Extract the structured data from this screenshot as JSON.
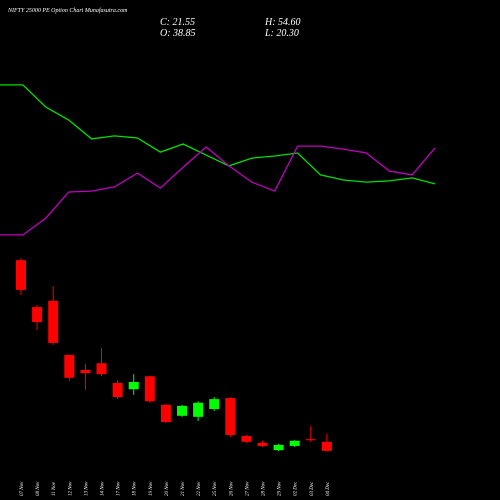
{
  "chart_data": {
    "type": "candlestick",
    "title": "NIFTY 25000 PE Option Chart Munafasutra.com",
    "ohlc_header": {
      "close": "C: 21.55",
      "high": "H: 54.60",
      "open": "O: 38.85",
      "low": "L: 20.30"
    },
    "categories": [
      "07 Nov",
      "08 Nov",
      "11 Nov",
      "12 Nov",
      "13 Nov",
      "14 Nov",
      "17 Nov",
      "18 Nov",
      "19 Nov",
      "20 Nov",
      "21 Nov",
      "22 Nov",
      "25 Nov",
      "26 Nov",
      "27 Nov",
      "28 Nov",
      "29 Nov",
      "02 Dec",
      "03 Dec",
      "04 Dec"
    ],
    "open": [
      388,
      298,
      310,
      206,
      177,
      190,
      152,
      140,
      165,
      110,
      89,
      87,
      102,
      123,
      50,
      37,
      23,
      31,
      44,
      38.85
    ],
    "high": [
      392,
      302,
      338,
      206,
      189,
      219,
      158,
      169,
      165,
      112,
      110,
      117,
      125,
      125,
      52,
      41,
      35,
      42,
      69,
      54.6
    ],
    "low": [
      321,
      254,
      225,
      156,
      139,
      165,
      121,
      129,
      114,
      75,
      87,
      79,
      98,
      48,
      37,
      29,
      21,
      29,
      39,
      20.3
    ],
    "close": [
      331,
      269,
      229,
      162,
      171,
      169,
      125,
      154,
      117,
      77,
      108,
      114,
      121,
      52,
      39,
      31,
      33,
      41,
      42,
      21.55
    ],
    "up_color": "#00ff00",
    "down_color": "#ff0000",
    "ylim": [
      4,
      398
    ],
    "overlays": [
      {
        "color": "#00e000",
        "values": [
          71.7,
          71.7,
          64.3,
          60,
          53.7,
          54.7,
          54,
          49.3,
          52,
          48.3,
          44.7,
          47.3,
          48,
          49,
          41.7,
          40,
          39.3,
          39.7,
          40.7,
          38.7
        ]
      },
      {
        "color": "#c000c0",
        "values": [
          21.7,
          21.7,
          27.3,
          36,
          36.3,
          37.7,
          42.3,
          37.3,
          44.3,
          51,
          44.7,
          39.3,
          36.3,
          51.3,
          51.3,
          50.3,
          49,
          43,
          41.7,
          50.7
        ]
      }
    ],
    "y2lim": [
      0,
      100
    ]
  }
}
